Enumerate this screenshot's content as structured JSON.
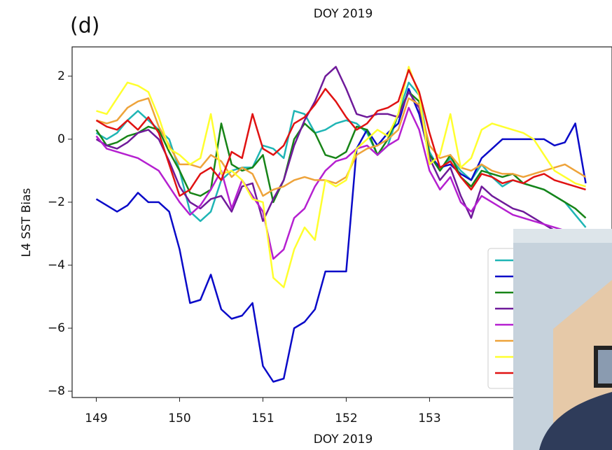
{
  "chart_data": {
    "type": "line",
    "panel_label": "(d)",
    "title": "DOY 2019",
    "xlabel": "DOY 2019",
    "ylabel": "L4 SST Bias",
    "x": [
      149,
      149.125,
      149.25,
      149.375,
      149.5,
      149.625,
      149.75,
      149.875,
      150,
      150.125,
      150.25,
      150.375,
      150.5,
      150.625,
      150.75,
      150.875,
      151,
      151.125,
      151.25,
      151.375,
      151.5,
      151.625,
      151.75,
      151.875,
      152,
      152.125,
      152.25,
      152.375,
      152.5,
      152.625,
      152.75,
      152.875,
      153,
      153.125,
      153.25,
      153.375,
      153.5,
      153.625,
      153.75,
      153.875,
      154,
      154.125,
      154.25,
      154.375,
      154.5,
      154.625,
      154.75,
      154.875
    ],
    "series": [
      {
        "color": "#1fb5b5",
        "values": [
          0.2,
          0.0,
          0.2,
          0.6,
          0.9,
          0.6,
          0.3,
          0.0,
          -1.0,
          -2.3,
          -2.6,
          -2.3,
          -1.3,
          -1.0,
          -0.9,
          -0.9,
          -0.2,
          -0.3,
          -0.6,
          0.9,
          0.8,
          0.2,
          0.3,
          0.5,
          0.6,
          0.5,
          0.2,
          -0.5,
          -0.2,
          0.8,
          1.8,
          1.4,
          -0.4,
          -1.0,
          -0.6,
          -1.0,
          -1.3,
          -0.8,
          -1.2,
          -1.5,
          -1.3,
          -1.4,
          -1.5,
          -1.6,
          -1.8,
          -2.0,
          -2.4,
          -2.8
        ]
      },
      {
        "color": "#0a0ac8",
        "values": [
          -1.9,
          -2.1,
          -2.3,
          -2.1,
          -1.7,
          -2.0,
          -2.0,
          -2.3,
          -3.5,
          -5.2,
          -5.1,
          -4.3,
          -5.4,
          -5.7,
          -5.6,
          -5.2,
          -7.2,
          -7.7,
          -7.6,
          -6.0,
          -5.8,
          -5.4,
          -4.2,
          -4.2,
          -4.2,
          -0.3,
          0.3,
          -0.2,
          0.2,
          0.5,
          1.6,
          0.8,
          -0.5,
          -0.9,
          -0.8,
          -1.1,
          -1.3,
          -0.6,
          -0.3,
          0.0,
          0.0,
          0.0,
          0.0,
          0.0,
          -0.2,
          -0.1,
          0.5,
          -1.4
        ]
      },
      {
        "color": "#178417",
        "values": [
          0.3,
          -0.2,
          -0.1,
          0.1,
          0.2,
          0.4,
          0.3,
          -0.4,
          -1.0,
          -1.7,
          -1.8,
          -1.6,
          0.5,
          -0.8,
          -1.0,
          -0.9,
          -0.5,
          -2.0,
          -1.3,
          0.0,
          0.5,
          0.2,
          -0.5,
          -0.6,
          -0.4,
          0.4,
          0.3,
          -0.5,
          0.0,
          0.8,
          1.5,
          1.2,
          -0.5,
          -1.0,
          -0.5,
          -1.2,
          -1.5,
          -1.0,
          -1.1,
          -1.2,
          -1.1,
          -1.4,
          -1.5,
          -1.6,
          -1.8,
          -2.0,
          -2.2,
          -2.5
        ]
      },
      {
        "color": "#6f1a9a",
        "values": [
          0.0,
          -0.2,
          -0.3,
          -0.1,
          0.2,
          0.3,
          0.0,
          -0.7,
          -1.5,
          -2.0,
          -2.2,
          -1.9,
          -1.8,
          -2.3,
          -1.5,
          -1.4,
          -2.6,
          -1.9,
          -1.3,
          -0.2,
          0.6,
          1.2,
          2.0,
          2.3,
          1.6,
          0.8,
          0.7,
          0.8,
          0.8,
          0.7,
          1.5,
          1.0,
          -0.6,
          -1.3,
          -0.9,
          -1.8,
          -2.5,
          -1.5,
          -1.8,
          -2.0,
          -2.2,
          -2.3,
          -2.5,
          -2.7,
          -2.9,
          -3.0,
          -3.1,
          -3.2
        ]
      },
      {
        "color": "#b520d0",
        "values": [
          0.1,
          -0.3,
          -0.4,
          -0.5,
          -0.6,
          -0.8,
          -1.0,
          -1.5,
          -2.0,
          -2.4,
          -2.1,
          -1.6,
          -1.0,
          -2.2,
          -1.3,
          -1.8,
          -2.3,
          -3.8,
          -3.5,
          -2.5,
          -2.2,
          -1.5,
          -1.0,
          -0.7,
          -0.6,
          -0.3,
          -0.2,
          -0.5,
          -0.2,
          0.0,
          1.0,
          0.3,
          -1.0,
          -1.6,
          -1.2,
          -2.0,
          -2.3,
          -1.8,
          -2.0,
          -2.2,
          -2.4,
          -2.5,
          -2.6,
          -2.7,
          -2.8,
          -2.9,
          -3.0,
          -3.1
        ]
      },
      {
        "color": "#eea33a",
        "values": [
          0.6,
          0.5,
          0.6,
          1.0,
          1.2,
          1.3,
          0.4,
          -0.2,
          -0.8,
          -0.8,
          -0.9,
          -0.5,
          -0.7,
          -1.2,
          -0.9,
          -1.1,
          -1.8,
          -1.6,
          -1.5,
          -1.3,
          -1.2,
          -1.3,
          -1.3,
          -1.4,
          -1.2,
          -0.5,
          -0.3,
          -0.2,
          0.0,
          0.3,
          1.3,
          1.1,
          -0.2,
          -0.6,
          -0.5,
          -0.9,
          -1.0,
          -0.8,
          -1.0,
          -1.1,
          -1.1,
          -1.2,
          -1.1,
          -1.0,
          -0.9,
          -0.8,
          -1.0,
          -1.2
        ]
      },
      {
        "color": "#ffff2e",
        "values": [
          0.9,
          0.8,
          1.3,
          1.8,
          1.7,
          1.5,
          0.7,
          -0.3,
          -0.5,
          -0.8,
          -0.6,
          0.8,
          -1.1,
          -1.0,
          -1.3,
          -1.9,
          -2.0,
          -4.4,
          -4.7,
          -3.5,
          -2.8,
          -3.2,
          -1.3,
          -1.5,
          -1.3,
          -0.3,
          0.0,
          0.3,
          0.1,
          0.8,
          2.3,
          1.4,
          -0.8,
          -0.5,
          0.8,
          -0.9,
          -0.6,
          0.3,
          0.5,
          0.4,
          0.3,
          0.2,
          0.0,
          -0.5,
          -1.0,
          -1.2,
          -1.4,
          -1.5
        ]
      },
      {
        "color": "#e01212",
        "values": [
          0.6,
          0.4,
          0.3,
          0.6,
          0.3,
          0.7,
          0.2,
          -0.8,
          -1.8,
          -1.6,
          -1.1,
          -0.9,
          -1.3,
          -0.4,
          -0.6,
          0.8,
          -0.3,
          -0.5,
          -0.2,
          0.5,
          0.7,
          1.1,
          1.6,
          1.2,
          0.7,
          0.3,
          0.5,
          0.9,
          1.0,
          1.2,
          2.2,
          1.5,
          0.2,
          -0.9,
          -0.7,
          -1.2,
          -1.6,
          -1.1,
          -1.2,
          -1.4,
          -1.3,
          -1.4,
          -1.2,
          -1.1,
          -1.3,
          -1.4,
          -1.5,
          -1.6
        ]
      }
    ],
    "xlim": [
      148.71,
      155.19
    ],
    "xticks": [
      149,
      150,
      151,
      152,
      153
    ],
    "ylim": [
      -8.2,
      2.93
    ],
    "yticks": [
      {
        "value": -8,
        "label": "−8"
      },
      {
        "value": -6,
        "label": "−6"
      },
      {
        "value": -4,
        "label": "−4"
      },
      {
        "value": -2,
        "label": "−2"
      },
      0,
      2
    ]
  }
}
